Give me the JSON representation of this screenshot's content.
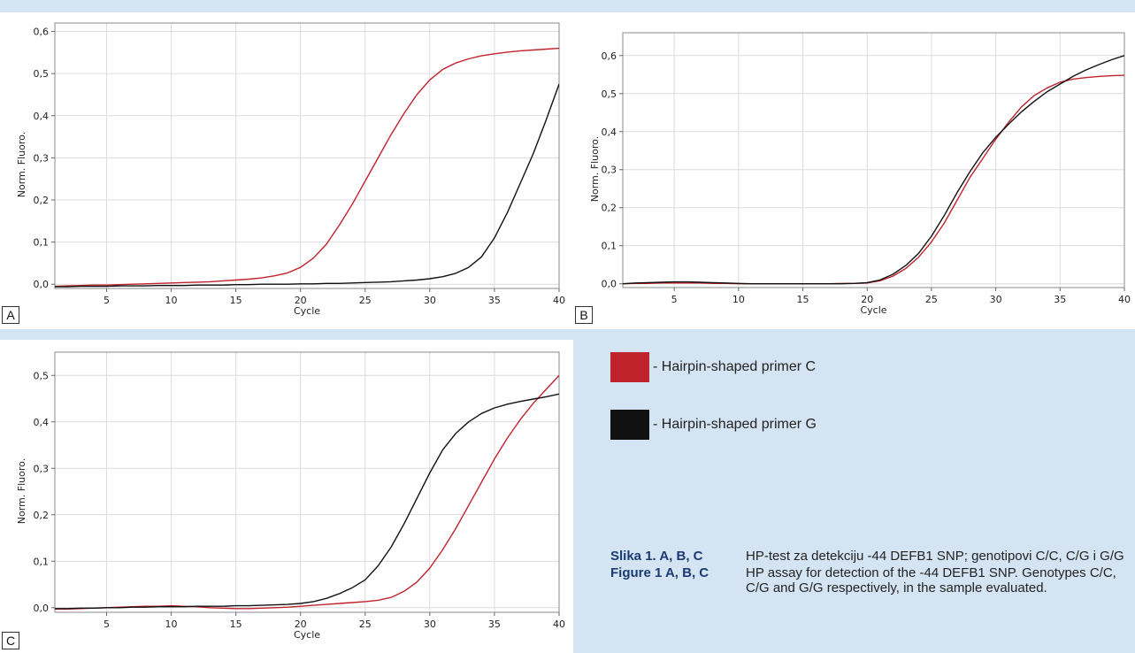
{
  "colors": {
    "primer_c": "#c0232c",
    "primer_g": "#111111",
    "background": "#d4e4f2"
  },
  "legend": {
    "items": [
      {
        "label": "- Hairpin-shaped primer C",
        "color": "#c0232c"
      },
      {
        "label": "- Hairpin-shaped primer G",
        "color": "#111111"
      }
    ]
  },
  "caption": {
    "rows": [
      {
        "label": "Slika 1. A, B, C",
        "text": "HP-test za detekciju -44 DEFB1 SNP; genotipovi C/C, C/G i G/G"
      },
      {
        "label": "Figure 1 A, B, C",
        "text": "HP assay for detection of the -44 DEFB1 SNP. Genotypes C/C, C/G and G/G respectively, in the sample evaluated."
      }
    ]
  },
  "chart_data": [
    {
      "type": "line",
      "panel_label": "A",
      "xlabel": "Cycle",
      "ylabel": "Norm. Fluoro.",
      "xlim": [
        1,
        40
      ],
      "ylim": [
        -0.01,
        0.62
      ],
      "xticks": [
        5,
        10,
        15,
        20,
        25,
        30,
        35,
        40
      ],
      "yticks": [
        0.0,
        0.1,
        0.2,
        0.3,
        0.4,
        0.5,
        0.6
      ],
      "ytick_labels": [
        "0,0",
        "0,1",
        "0,2",
        "0,3",
        "0,4",
        "0,5",
        "0,6"
      ],
      "grid": true,
      "x": [
        1,
        2,
        3,
        4,
        5,
        6,
        7,
        8,
        9,
        10,
        11,
        12,
        13,
        14,
        15,
        16,
        17,
        18,
        19,
        20,
        21,
        22,
        23,
        24,
        25,
        26,
        27,
        28,
        29,
        30,
        31,
        32,
        33,
        34,
        35,
        36,
        37,
        38,
        39,
        40
      ],
      "series": [
        {
          "color": "#c0232c",
          "values": [
            -0.005,
            -0.004,
            -0.003,
            -0.002,
            -0.002,
            -0.001,
            0.0,
            0.001,
            0.002,
            0.003,
            0.004,
            0.005,
            0.006,
            0.008,
            0.01,
            0.012,
            0.015,
            0.02,
            0.027,
            0.04,
            0.062,
            0.095,
            0.14,
            0.19,
            0.245,
            0.3,
            0.355,
            0.405,
            0.45,
            0.485,
            0.51,
            0.525,
            0.535,
            0.542,
            0.547,
            0.551,
            0.554,
            0.556,
            0.558,
            0.56
          ]
        },
        {
          "color": "#111111",
          "values": [
            -0.006,
            -0.006,
            -0.005,
            -0.005,
            -0.005,
            -0.004,
            -0.004,
            -0.004,
            -0.003,
            -0.003,
            -0.003,
            -0.002,
            -0.002,
            -0.002,
            -0.001,
            -0.001,
            0.0,
            0.0,
            0.0,
            0.001,
            0.001,
            0.002,
            0.002,
            0.003,
            0.004,
            0.005,
            0.006,
            0.008,
            0.01,
            0.013,
            0.018,
            0.026,
            0.04,
            0.065,
            0.11,
            0.17,
            0.24,
            0.31,
            0.39,
            0.475
          ]
        }
      ]
    },
    {
      "type": "line",
      "panel_label": "B",
      "xlabel": "Cycle",
      "ylabel": "Norm. Fluoro.",
      "xlim": [
        1,
        40
      ],
      "ylim": [
        -0.01,
        0.66
      ],
      "xticks": [
        5,
        10,
        15,
        20,
        25,
        30,
        35,
        40
      ],
      "yticks": [
        0.0,
        0.1,
        0.2,
        0.3,
        0.4,
        0.5,
        0.6
      ],
      "ytick_labels": [
        "0,0",
        "0,1",
        "0,2",
        "0,3",
        "0,4",
        "0,5",
        "0,6"
      ],
      "grid": true,
      "x": [
        1,
        2,
        3,
        4,
        5,
        6,
        7,
        8,
        9,
        10,
        11,
        12,
        13,
        14,
        15,
        16,
        17,
        18,
        19,
        20,
        21,
        22,
        23,
        24,
        25,
        26,
        27,
        28,
        29,
        30,
        31,
        32,
        33,
        34,
        35,
        36,
        37,
        38,
        39,
        40
      ],
      "series": [
        {
          "color": "#c0232c",
          "values": [
            0.0,
            0.001,
            0.001,
            0.002,
            0.002,
            0.002,
            0.002,
            0.001,
            0.001,
            0.0,
            0.0,
            0.0,
            0.0,
            0.0,
            0.0,
            0.0,
            0.0,
            0.001,
            0.001,
            0.002,
            0.008,
            0.02,
            0.04,
            0.07,
            0.11,
            0.16,
            0.22,
            0.28,
            0.33,
            0.38,
            0.425,
            0.465,
            0.495,
            0.515,
            0.53,
            0.538,
            0.542,
            0.545,
            0.547,
            0.548
          ]
        },
        {
          "color": "#111111",
          "values": [
            0.0,
            0.002,
            0.003,
            0.004,
            0.005,
            0.005,
            0.004,
            0.003,
            0.002,
            0.001,
            0.0,
            0.0,
            0.0,
            0.0,
            0.0,
            0.0,
            0.0,
            0.0,
            0.001,
            0.003,
            0.01,
            0.025,
            0.048,
            0.08,
            0.125,
            0.18,
            0.24,
            0.295,
            0.345,
            0.385,
            0.42,
            0.452,
            0.48,
            0.505,
            0.525,
            0.545,
            0.562,
            0.576,
            0.589,
            0.6
          ]
        }
      ]
    },
    {
      "type": "line",
      "panel_label": "C",
      "xlabel": "Cycle",
      "ylabel": "Norm. Fluoro.",
      "xlim": [
        1,
        40
      ],
      "ylim": [
        -0.01,
        0.55
      ],
      "xticks": [
        5,
        10,
        15,
        20,
        25,
        30,
        35,
        40
      ],
      "yticks": [
        0.0,
        0.1,
        0.2,
        0.3,
        0.4,
        0.5
      ],
      "ytick_labels": [
        "0,0",
        "0,1",
        "0,2",
        "0,3",
        "0,4",
        "0,5"
      ],
      "grid": true,
      "x": [
        1,
        2,
        3,
        4,
        5,
        6,
        7,
        8,
        9,
        10,
        11,
        12,
        13,
        14,
        15,
        16,
        17,
        18,
        19,
        20,
        21,
        22,
        23,
        24,
        25,
        26,
        27,
        28,
        29,
        30,
        31,
        32,
        33,
        34,
        35,
        36,
        37,
        38,
        39,
        40
      ],
      "series": [
        {
          "color": "#c0232c",
          "values": [
            -0.003,
            -0.003,
            -0.002,
            -0.001,
            0.0,
            0.001,
            0.002,
            0.003,
            0.003,
            0.004,
            0.003,
            0.002,
            0.0,
            -0.001,
            -0.002,
            -0.002,
            -0.001,
            0.0,
            0.001,
            0.003,
            0.005,
            0.007,
            0.009,
            0.011,
            0.013,
            0.016,
            0.022,
            0.035,
            0.055,
            0.085,
            0.125,
            0.17,
            0.22,
            0.27,
            0.32,
            0.365,
            0.405,
            0.44,
            0.47,
            0.5
          ]
        },
        {
          "color": "#111111",
          "values": [
            -0.002,
            -0.002,
            -0.001,
            -0.001,
            0.0,
            0.0,
            0.001,
            0.001,
            0.002,
            0.002,
            0.002,
            0.003,
            0.003,
            0.003,
            0.004,
            0.004,
            0.005,
            0.006,
            0.007,
            0.009,
            0.013,
            0.02,
            0.03,
            0.043,
            0.06,
            0.09,
            0.13,
            0.18,
            0.235,
            0.29,
            0.34,
            0.375,
            0.4,
            0.418,
            0.43,
            0.438,
            0.444,
            0.449,
            0.454,
            0.46
          ]
        }
      ]
    }
  ]
}
